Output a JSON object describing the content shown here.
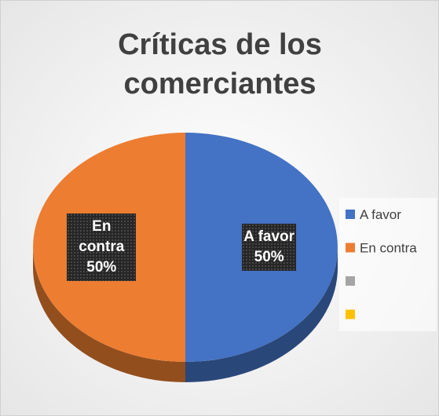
{
  "chart_data": {
    "type": "pie",
    "title": "Críticas de los comerciantes",
    "categories": [
      "A favor",
      "En contra",
      null,
      null
    ],
    "values": [
      50,
      50,
      0,
      0
    ],
    "value_labels": [
      "50%",
      "50%",
      null,
      null
    ],
    "colors": [
      "#4472c4",
      "#ed7d31",
      "#a5a5a5",
      "#ffc000"
    ],
    "legend": "right"
  }
}
